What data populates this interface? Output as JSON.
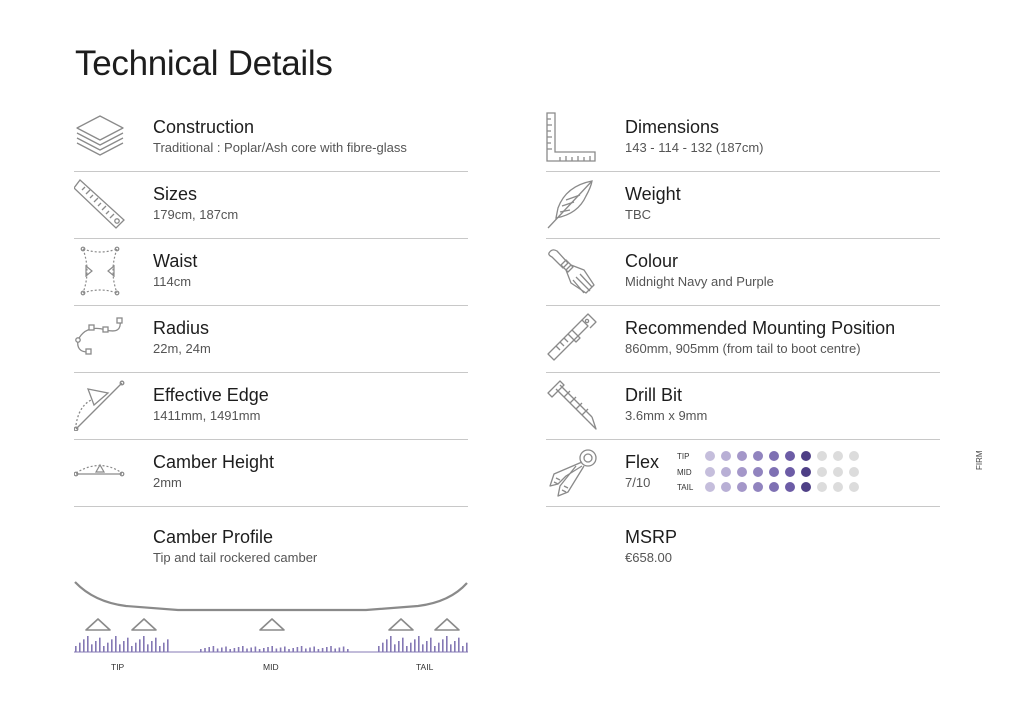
{
  "page": {
    "title": "Technical Details"
  },
  "left": [
    {
      "icon": "layers-icon",
      "label": "Construction",
      "value": "Traditional : Poplar/Ash core with fibre-glass"
    },
    {
      "icon": "ruler-icon",
      "label": "Sizes",
      "value": "179cm, 187cm"
    },
    {
      "icon": "waist-icon",
      "label": "Waist",
      "value": "114cm"
    },
    {
      "icon": "radius-curve-icon",
      "label": "Radius",
      "value": "22m, 24m"
    },
    {
      "icon": "edge-arrow-icon",
      "label": "Effective Edge",
      "value": "1411mm, 1491mm"
    },
    {
      "icon": "camber-arc-icon",
      "label": "Camber Height",
      "value": "2mm"
    },
    {
      "icon": "",
      "label": "Camber Profile",
      "value": "Tip and tail rockered camber"
    }
  ],
  "right": [
    {
      "icon": "set-square-icon",
      "label": "Dimensions",
      "value": "143 - 114 - 132 (187cm)"
    },
    {
      "icon": "feather-icon",
      "label": "Weight",
      "value": "TBC"
    },
    {
      "icon": "paintbrush-icon",
      "label": "Colour",
      "value": "Midnight Navy and Purple"
    },
    {
      "icon": "caliper-icon",
      "label": "Recommended Mounting Position",
      "value": "860mm, 905mm (from tail to boot centre)"
    },
    {
      "icon": "screw-icon",
      "label": "Drill Bit",
      "value": "3.6mm x 9mm"
    },
    {
      "icon": "hand-grip-icon",
      "label": "Flex",
      "value": "7/10"
    },
    {
      "icon": "",
      "label": "MSRP",
      "value": "€658.00"
    }
  ],
  "flex": {
    "rows": [
      {
        "label": "TIP",
        "level": 7
      },
      {
        "label": "MID",
        "level": 7
      },
      {
        "label": "TAIL",
        "level": 7
      }
    ],
    "total": 10,
    "firm_label": "FIRM",
    "colors": [
      "#c5bedc",
      "#b8afd5",
      "#a497c9",
      "#9184bf",
      "#7e70b3",
      "#6c5ca6",
      "#4e3f86",
      "#dcdcdc",
      "#dcdcdc",
      "#dcdcdc"
    ]
  },
  "camber_profile": {
    "labels": {
      "tip": "TIP",
      "mid": "MID",
      "tail": "TAIL"
    },
    "curve_color": "#8a8a8a",
    "bar_color": "#8478b4"
  }
}
